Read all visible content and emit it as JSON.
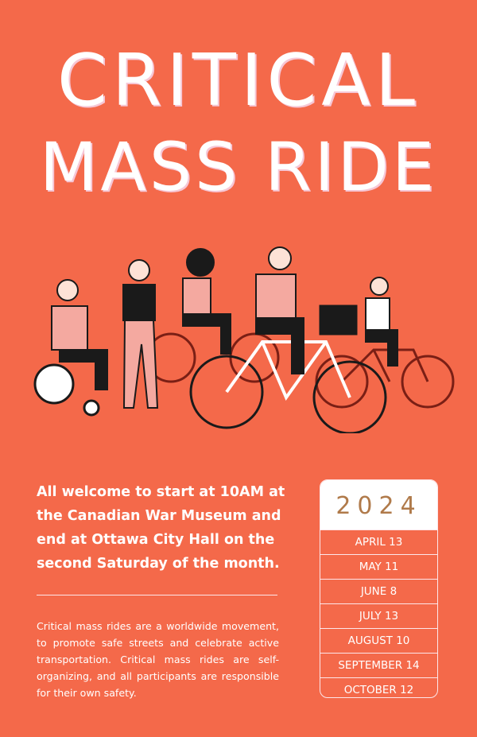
{
  "title": {
    "line1": "CRITICAL",
    "line2": "MASS RIDE"
  },
  "lead": "All welcome to start at 10AM at the Canadian War Museum and end at Ottawa City Hall on the second Saturday of the month.",
  "body": "Critical mass rides are a worldwide movement, to promote safe streets and celebrate active transportation. Critical mass rides are self-organizing, and all participants are responsible for their own safety.",
  "schedule": {
    "year": "2024",
    "dates": [
      "APRIL 13",
      "MAY 11",
      "JUNE 8",
      "JULY 13",
      "AUGUST 10",
      "SEPTEMBER 14",
      "OCTOBER 12"
    ]
  },
  "colors": {
    "background": "#f4694a",
    "text": "#ffffff",
    "year": "#b07a4a"
  }
}
